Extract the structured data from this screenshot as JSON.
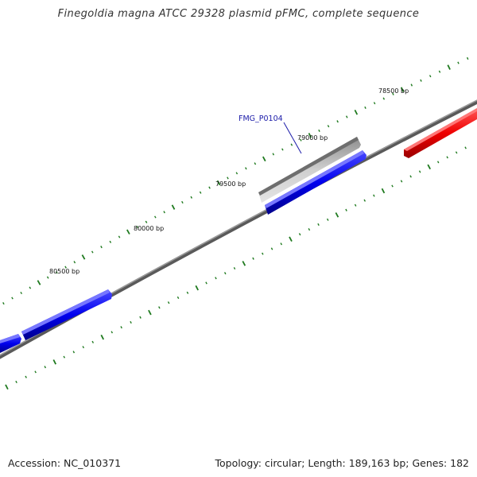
{
  "header": {
    "title": "Finegoldia magna ATCC 29328 plasmid pFMC, complete sequence"
  },
  "footer": {
    "accession": "Accession: NC_010371",
    "summary": "Topology: circular; Length: 189,163 bp; Genes: 182"
  },
  "map": {
    "position_labels": [
      "78500 bp",
      "79000 bp",
      "79500 bp",
      "80000 bp",
      "80500 bp"
    ],
    "gene_label": "FMG_P0104",
    "colors": {
      "backbone": "#808080",
      "tick": "#1f7a1f",
      "gene_forward": "#ff0000",
      "gene_reverse": "#0000ff",
      "gene_highlight": "#c0c0c0",
      "gene_label": "#1a1aa8"
    }
  }
}
